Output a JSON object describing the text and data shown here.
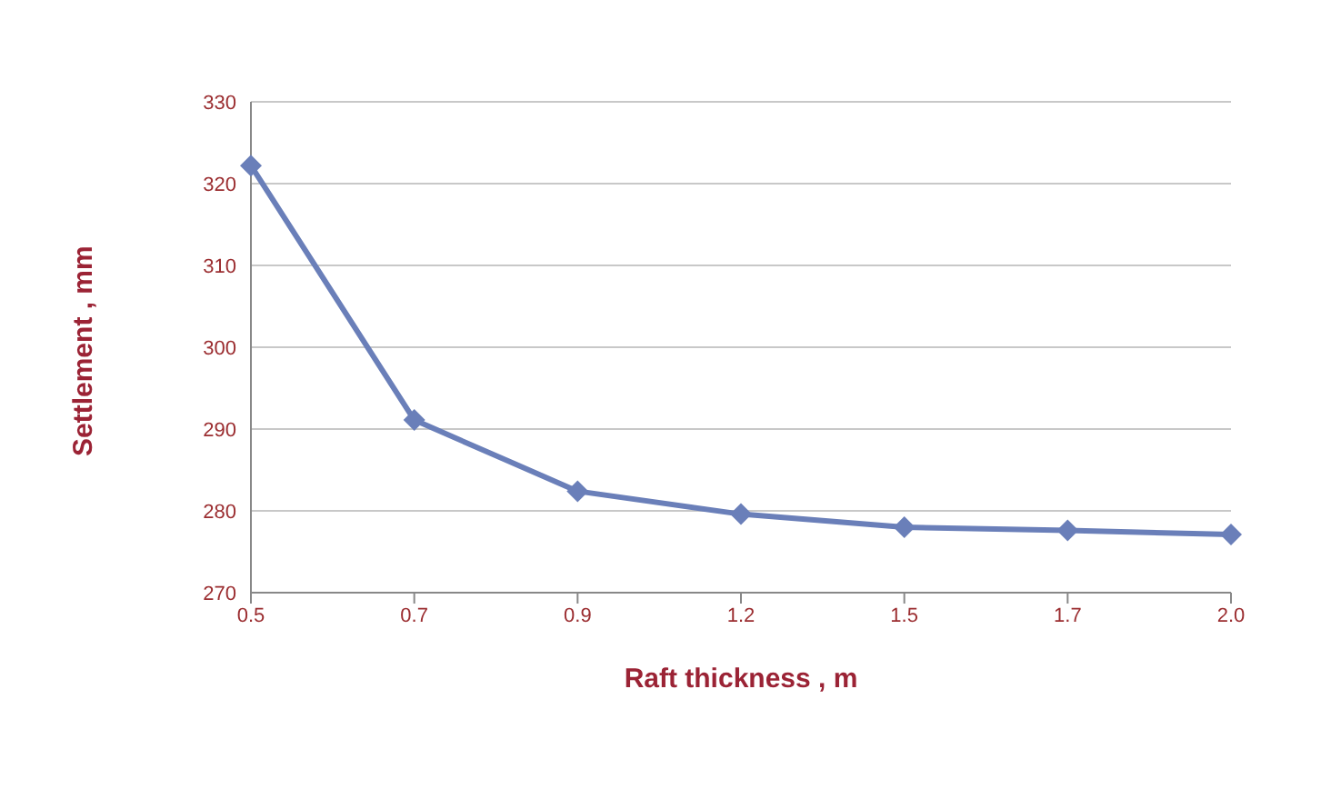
{
  "chart_data": {
    "type": "line",
    "xlabel": "Raft thickness , m",
    "ylabel": "Settlement , mm",
    "categories": [
      "0.5",
      "0.7",
      "0.9",
      "1.2",
      "1.5",
      "1.7",
      "2.0"
    ],
    "series": [
      {
        "color": "#6a7fb9",
        "values": [
          322.2,
          291.1,
          282.4,
          279.6,
          278.0,
          277.6,
          277.1
        ]
      }
    ],
    "ylim": [
      270,
      330
    ],
    "yticks": [
      270,
      280,
      290,
      300,
      310,
      320,
      330
    ],
    "grid": "y",
    "marker": "diamond",
    "line_style": "solid"
  }
}
